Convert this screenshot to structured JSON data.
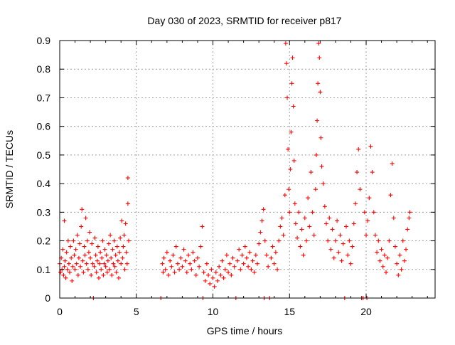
{
  "chart_data": {
    "type": "scatter",
    "title": "Day 030 of 2023, SRMTID for receiver p817",
    "xlabel": "GPS time / hours",
    "ylabel": "SRMTID / TECUs",
    "xlim": [
      0,
      24.5
    ],
    "ylim": [
      0,
      0.9
    ],
    "x_ticks": [
      0,
      5,
      10,
      15,
      20
    ],
    "y_ticks": [
      0,
      0.1,
      0.2,
      0.3,
      0.4,
      0.5,
      0.6,
      0.7,
      0.8,
      0.9
    ],
    "x_tick_labels": [
      "0",
      "5",
      "10",
      "15",
      "20"
    ],
    "y_tick_labels": [
      "0",
      "0.1",
      "0.2",
      "0.3",
      "0.4",
      "0.5",
      "0.6",
      "0.7",
      "0.8",
      "0.9"
    ],
    "grid": true,
    "marker": "+",
    "color": "#ff0000",
    "series": [
      {
        "name": "SRMTID",
        "points": [
          [
            0.0,
            0.12
          ],
          [
            0.05,
            0.09
          ],
          [
            0.1,
            0.14
          ],
          [
            0.15,
            0.1
          ],
          [
            0.2,
            0.17
          ],
          [
            0.25,
            0.08
          ],
          [
            0.3,
            0.11
          ],
          [
            0.3,
            0.27
          ],
          [
            0.35,
            0.13
          ],
          [
            0.4,
            0.07
          ],
          [
            0.45,
            0.16
          ],
          [
            0.5,
            0.1
          ],
          [
            0.55,
            0.2
          ],
          [
            0.6,
            0.12
          ],
          [
            0.65,
            0.09
          ],
          [
            0.7,
            0.18
          ],
          [
            0.75,
            0.14
          ],
          [
            0.8,
            0.06
          ],
          [
            0.85,
            0.11
          ],
          [
            0.9,
            0.2
          ],
          [
            0.95,
            0.15
          ],
          [
            1.0,
            0.1
          ],
          [
            1.05,
            0.17
          ],
          [
            1.1,
            0.12
          ],
          [
            1.15,
            0.22
          ],
          [
            1.2,
            0.08
          ],
          [
            1.25,
            0.14
          ],
          [
            1.3,
            0.19
          ],
          [
            1.35,
            0.11
          ],
          [
            1.4,
            0.25
          ],
          [
            1.45,
            0.31
          ],
          [
            1.5,
            0.13
          ],
          [
            1.55,
            0.09
          ],
          [
            1.6,
            0.18
          ],
          [
            1.65,
            0.15
          ],
          [
            1.7,
            0.28
          ],
          [
            1.75,
            0.12
          ],
          [
            1.8,
            0.2
          ],
          [
            1.85,
            0.1
          ],
          [
            1.9,
            0.16
          ],
          [
            1.95,
            0.23
          ],
          [
            2.0,
            0.14
          ],
          [
            2.05,
            0.08
          ],
          [
            2.1,
            0.19
          ],
          [
            2.15,
            0.12
          ],
          [
            2.2,
            0.0
          ],
          [
            2.25,
            0.11
          ],
          [
            2.3,
            0.21
          ],
          [
            2.35,
            0.15
          ],
          [
            2.4,
            0.09
          ],
          [
            2.45,
            0.13
          ],
          [
            2.5,
            0.18
          ],
          [
            2.55,
            0.07
          ],
          [
            2.6,
            0.12
          ],
          [
            2.65,
            0.16
          ],
          [
            2.7,
            0.1
          ],
          [
            2.75,
            0.14
          ],
          [
            2.8,
            0.2
          ],
          [
            2.85,
            0.08
          ],
          [
            2.9,
            0.12
          ],
          [
            2.95,
            0.17
          ],
          [
            3.0,
            0.11
          ],
          [
            3.05,
            0.15
          ],
          [
            3.1,
            0.09
          ],
          [
            3.15,
            0.13
          ],
          [
            3.2,
            0.19
          ],
          [
            3.25,
            0.1
          ],
          [
            3.3,
            0.22
          ],
          [
            3.35,
            0.14
          ],
          [
            3.4,
            0.08
          ],
          [
            3.45,
            0.17
          ],
          [
            3.5,
            0.12
          ],
          [
            3.55,
            0.2
          ],
          [
            3.6,
            0.11
          ],
          [
            3.65,
            0.15
          ],
          [
            3.7,
            0.09
          ],
          [
            3.75,
            0.18
          ],
          [
            3.8,
            0.13
          ],
          [
            3.85,
            0.07
          ],
          [
            3.9,
            0.16
          ],
          [
            3.95,
            0.21
          ],
          [
            4.0,
            0.12
          ],
          [
            4.05,
            0.27
          ],
          [
            4.1,
            0.14
          ],
          [
            4.15,
            0.18
          ],
          [
            4.2,
            0.22
          ],
          [
            4.25,
            0.1
          ],
          [
            4.3,
            0.26
          ],
          [
            4.35,
            0.16
          ],
          [
            4.4,
            0.12
          ],
          [
            4.45,
            0.33
          ],
          [
            4.45,
            0.42
          ],
          [
            4.5,
            0.2
          ],
          [
            6.6,
            0.0
          ],
          [
            6.7,
            0.12
          ],
          [
            6.75,
            0.09
          ],
          [
            6.8,
            0.14
          ],
          [
            6.9,
            0.1
          ],
          [
            7.0,
            0.16
          ],
          [
            7.1,
            0.08
          ],
          [
            7.2,
            0.13
          ],
          [
            7.3,
            0.11
          ],
          [
            7.4,
            0.15
          ],
          [
            7.5,
            0.09
          ],
          [
            7.6,
            0.18
          ],
          [
            7.7,
            0.12
          ],
          [
            7.8,
            0.1
          ],
          [
            7.9,
            0.14
          ],
          [
            8.0,
            0.11
          ],
          [
            8.1,
            0.17
          ],
          [
            8.2,
            0.13
          ],
          [
            8.3,
            0.09
          ],
          [
            8.4,
            0.15
          ],
          [
            8.5,
            0.12
          ],
          [
            8.6,
            0.1
          ],
          [
            8.7,
            0.16
          ],
          [
            8.8,
            0.13
          ],
          [
            8.9,
            0.08
          ],
          [
            9.0,
            0.14
          ],
          [
            9.1,
            0.11
          ],
          [
            9.2,
            0.18
          ],
          [
            9.3,
            0.25
          ],
          [
            9.35,
            0.0
          ],
          [
            9.4,
            0.09
          ],
          [
            9.5,
            0.06
          ],
          [
            9.6,
            0.12
          ],
          [
            9.7,
            0.08
          ],
          [
            9.8,
            0.05
          ],
          [
            9.9,
            0.1
          ],
          [
            10.0,
            0.07
          ],
          [
            10.1,
            0.04
          ],
          [
            10.2,
            0.09
          ],
          [
            10.3,
            0.06
          ],
          [
            10.4,
            0.11
          ],
          [
            10.5,
            0.08
          ],
          [
            10.6,
            0.13
          ],
          [
            10.7,
            0.07
          ],
          [
            10.8,
            0.1
          ],
          [
            10.9,
            0.15
          ],
          [
            11.0,
            0.09
          ],
          [
            11.1,
            0.12
          ],
          [
            11.2,
            0.08
          ],
          [
            11.3,
            0.14
          ],
          [
            11.4,
            0.11
          ],
          [
            11.5,
            0.0
          ],
          [
            11.6,
            0.13
          ],
          [
            11.7,
            0.17
          ],
          [
            11.8,
            0.1
          ],
          [
            11.9,
            0.15
          ],
          [
            12.0,
            0.12
          ],
          [
            12.1,
            0.18
          ],
          [
            12.2,
            0.14
          ],
          [
            12.3,
            0.11
          ],
          [
            12.4,
            0.16
          ],
          [
            12.5,
            0.1
          ],
          [
            12.6,
            0.13
          ],
          [
            12.7,
            0.09
          ],
          [
            12.8,
            0.15
          ],
          [
            12.9,
            0.12
          ],
          [
            13.0,
            0.19
          ],
          [
            13.1,
            0.23
          ],
          [
            13.2,
            0.27
          ],
          [
            13.3,
            0.31
          ],
          [
            13.35,
            0.0
          ],
          [
            13.4,
            0.2
          ],
          [
            13.5,
            0.15
          ],
          [
            13.6,
            0.11
          ],
          [
            13.7,
            0.0
          ],
          [
            13.8,
            0.14
          ],
          [
            13.9,
            0.18
          ],
          [
            14.0,
            0.12
          ],
          [
            14.1,
            0.16
          ],
          [
            14.2,
            0.1
          ],
          [
            14.3,
            0.2
          ],
          [
            14.4,
            0.25
          ],
          [
            14.5,
            0.28
          ],
          [
            14.6,
            0.22
          ],
          [
            14.7,
            0.36
          ],
          [
            14.75,
            0.89
          ],
          [
            14.8,
            0.82
          ],
          [
            14.85,
            0.7
          ],
          [
            14.9,
            0.52
          ],
          [
            14.95,
            0.38
          ],
          [
            15.0,
            0.3
          ],
          [
            15.05,
            0.45
          ],
          [
            15.1,
            0.58
          ],
          [
            15.15,
            0.75
          ],
          [
            15.2,
            0.84
          ],
          [
            15.25,
            0.67
          ],
          [
            15.3,
            0.48
          ],
          [
            15.35,
            0.33
          ],
          [
            15.4,
            0.26
          ],
          [
            15.5,
            0.21
          ],
          [
            15.6,
            0.3
          ],
          [
            15.7,
            0.18
          ],
          [
            15.8,
            0.24
          ],
          [
            15.9,
            0.15
          ],
          [
            16.0,
            0.28
          ],
          [
            16.1,
            0.2
          ],
          [
            16.2,
            0.35
          ],
          [
            16.3,
            0.25
          ],
          [
            16.4,
            0.44
          ],
          [
            16.5,
            0.3
          ],
          [
            16.6,
            0.22
          ],
          [
            16.7,
            0.38
          ],
          [
            16.75,
            0.5
          ],
          [
            16.8,
            0.62
          ],
          [
            16.85,
            0.75
          ],
          [
            16.9,
            0.89
          ],
          [
            16.95,
            0.84
          ],
          [
            17.0,
            0.72
          ],
          [
            17.05,
            0.56
          ],
          [
            17.1,
            0.46
          ],
          [
            17.2,
            0.4
          ],
          [
            17.3,
            0.32
          ],
          [
            17.4,
            0.26
          ],
          [
            17.5,
            0.2
          ],
          [
            17.6,
            0.28
          ],
          [
            17.7,
            0.17
          ],
          [
            17.8,
            0.24
          ],
          [
            17.9,
            0.14
          ],
          [
            18.0,
            0.2
          ],
          [
            18.1,
            0.27
          ],
          [
            18.2,
            0.16
          ],
          [
            18.3,
            0.22
          ],
          [
            18.4,
            0.13
          ],
          [
            18.5,
            0.19
          ],
          [
            18.6,
            0.0
          ],
          [
            18.7,
            0.25
          ],
          [
            18.8,
            0.15
          ],
          [
            18.9,
            0.2
          ],
          [
            19.0,
            0.12
          ],
          [
            19.1,
            0.18
          ],
          [
            19.2,
            0.26
          ],
          [
            19.3,
            0.33
          ],
          [
            19.4,
            0.44
          ],
          [
            19.5,
            0.52
          ],
          [
            19.6,
            0.38
          ],
          [
            19.7,
            0.0
          ],
          [
            19.8,
            0.0
          ],
          [
            19.9,
            0.3
          ],
          [
            20.0,
            0.22
          ],
          [
            20.05,
            0.0
          ],
          [
            20.1,
            0.27
          ],
          [
            20.2,
            0.35
          ],
          [
            20.3,
            0.53
          ],
          [
            20.4,
            0.44
          ],
          [
            20.5,
            0.3
          ],
          [
            20.6,
            0.22
          ],
          [
            20.7,
            0.16
          ],
          [
            20.8,
            0.2
          ],
          [
            20.9,
            0.13
          ],
          [
            21.0,
            0.17
          ],
          [
            21.1,
            0.11
          ],
          [
            21.2,
            0.15
          ],
          [
            21.3,
            0.09
          ],
          [
            21.4,
            0.14
          ],
          [
            21.5,
            0.2
          ],
          [
            21.6,
            0.36
          ],
          [
            21.7,
            0.47
          ],
          [
            21.8,
            0.28
          ],
          [
            21.9,
            0.18
          ],
          [
            22.0,
            0.12
          ],
          [
            22.1,
            0.08
          ],
          [
            22.2,
            0.15
          ],
          [
            22.3,
            0.1
          ],
          [
            22.4,
            0.2
          ],
          [
            22.5,
            0.13
          ],
          [
            22.6,
            0.17
          ],
          [
            22.7,
            0.24
          ],
          [
            22.8,
            0.28
          ],
          [
            22.85,
            0.3
          ]
        ]
      }
    ]
  }
}
